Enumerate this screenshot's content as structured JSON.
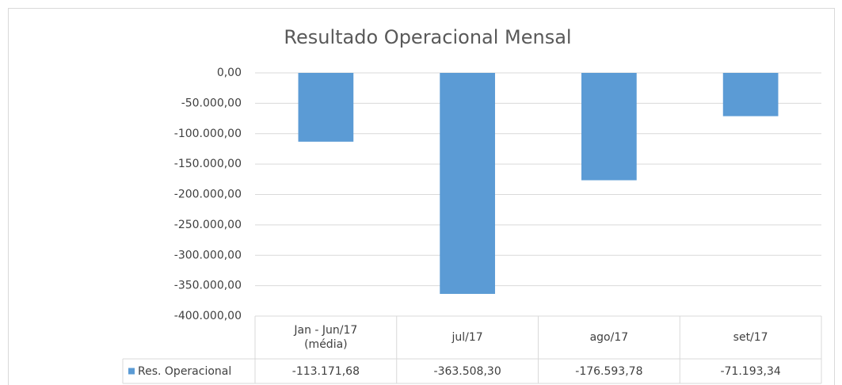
{
  "chart_data": {
    "type": "bar",
    "title": "Resultado Operacional Mensal",
    "categories": [
      "Jan - Jun/17\n(média)",
      "jul/17",
      "ago/17",
      "set/17"
    ],
    "series": [
      {
        "name": "Res. Operacional",
        "color": "#5b9bd5",
        "values": [
          -113171.68,
          -363508.3,
          -176593.78,
          -71193.34
        ],
        "value_labels": [
          "-113.171,68",
          "-363.508,30",
          "-176.593,78",
          "-71.193,34"
        ]
      }
    ],
    "ylim": [
      -400000,
      0
    ],
    "yticks": [
      {
        "value": 0,
        "label": "0,00"
      },
      {
        "value": -50000,
        "label": "-50.000,00"
      },
      {
        "value": -100000,
        "label": "-100.000,00"
      },
      {
        "value": -150000,
        "label": "-150.000,00"
      },
      {
        "value": -200000,
        "label": "-200.000,00"
      },
      {
        "value": -250000,
        "label": "-250.000,00"
      },
      {
        "value": -300000,
        "label": "-300.000,00"
      },
      {
        "value": -350000,
        "label": "-350.000,00"
      },
      {
        "value": -400000,
        "label": "-400.000,00"
      }
    ],
    "grid": true
  }
}
